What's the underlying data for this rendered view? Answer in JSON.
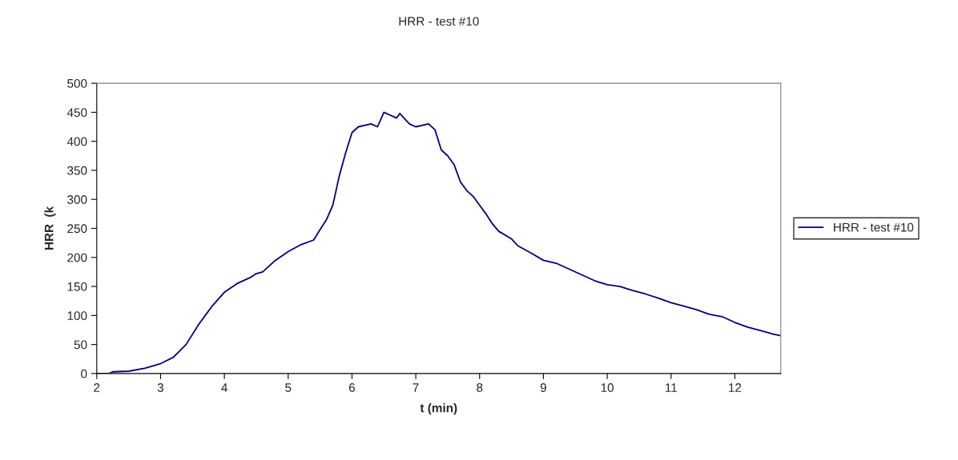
{
  "chart_data": {
    "type": "line",
    "title": "HRR - test #10",
    "xlabel": "t (min)",
    "ylabel": "HRR  (k",
    "xlim": [
      2,
      12.72
    ],
    "xticks": [
      2,
      3,
      4,
      5,
      6,
      7,
      8,
      9,
      10,
      11,
      12
    ],
    "ylim": [
      0,
      500
    ],
    "yticks": [
      0,
      50,
      100,
      150,
      200,
      250,
      300,
      350,
      400,
      450,
      500
    ],
    "grid": false,
    "legend": "right",
    "marker": "none",
    "line_style": "solid",
    "series": [
      {
        "name": "HRR - test #10",
        "color": "#000080",
        "x": [
          2.0,
          2.2,
          2.25,
          2.5,
          2.75,
          3.0,
          3.2,
          3.4,
          3.6,
          3.8,
          4.0,
          4.2,
          4.4,
          4.5,
          4.6,
          4.8,
          5.0,
          5.2,
          5.4,
          5.5,
          5.6,
          5.7,
          5.8,
          5.9,
          6.0,
          6.1,
          6.3,
          6.4,
          6.5,
          6.6,
          6.7,
          6.75,
          6.9,
          7.0,
          7.2,
          7.3,
          7.4,
          7.5,
          7.6,
          7.7,
          7.8,
          7.9,
          8.0,
          8.1,
          8.2,
          8.3,
          8.5,
          8.6,
          8.8,
          9.0,
          9.2,
          9.4,
          9.6,
          9.8,
          10.0,
          10.2,
          10.4,
          10.6,
          10.8,
          11.0,
          11.2,
          11.4,
          11.6,
          11.8,
          12.0,
          12.2,
          12.4,
          12.6,
          12.72
        ],
        "values": [
          0,
          0,
          3,
          4,
          9,
          17,
          28,
          50,
          85,
          115,
          140,
          155,
          165,
          172,
          175,
          195,
          210,
          222,
          230,
          248,
          265,
          290,
          340,
          380,
          415,
          425,
          430,
          425,
          450,
          445,
          440,
          448,
          430,
          425,
          430,
          420,
          385,
          375,
          360,
          330,
          315,
          305,
          290,
          275,
          258,
          245,
          232,
          220,
          208,
          195,
          190,
          180,
          170,
          160,
          153,
          150,
          143,
          137,
          130,
          122,
          116,
          110,
          102,
          98,
          88,
          80,
          74,
          68,
          65
        ]
      }
    ]
  }
}
